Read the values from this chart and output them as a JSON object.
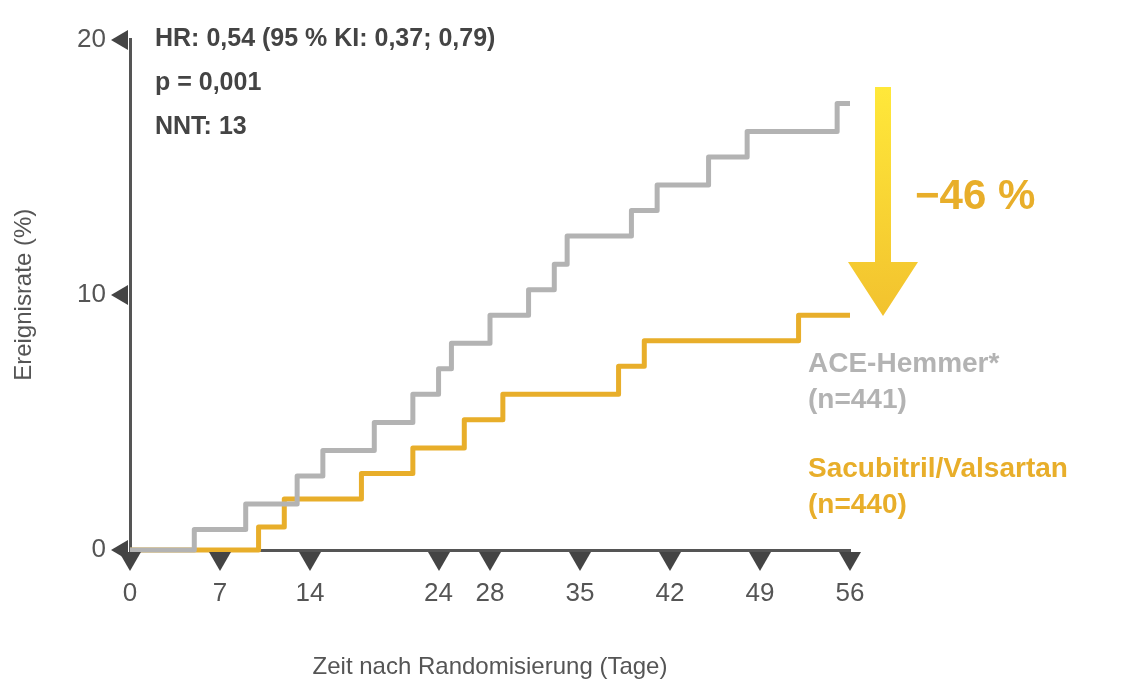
{
  "chart_data": {
    "type": "step",
    "xlabel": "Zeit nach Randomisierung (Tage)",
    "ylabel": "Ereignisrate (%)",
    "xlim": [
      0,
      56
    ],
    "xticks": [
      0,
      7,
      14,
      24,
      28,
      35,
      42,
      49,
      56
    ],
    "ylim": [
      0,
      20
    ],
    "yticks": [
      0,
      10,
      20
    ],
    "series": [
      {
        "name": "ACE-Hemmer*\n(n=441)",
        "color": "#b3b3b3",
        "x": [
          0,
          5,
          9,
          13,
          15,
          19,
          22,
          24,
          25,
          28,
          31,
          33,
          34,
          39,
          41,
          45,
          48,
          55,
          56
        ],
        "values": [
          0,
          0.8,
          1.8,
          2.9,
          3.9,
          5,
          6.1,
          7.1,
          8.1,
          9.2,
          10.2,
          11.2,
          12.3,
          13.3,
          14.3,
          15.4,
          16.4,
          17.5,
          17.5
        ]
      },
      {
        "name": "Sacubitril/Valsartan\n(n=440)",
        "color": "#e8ae2a",
        "x": [
          0,
          10,
          12,
          18,
          22,
          26,
          29,
          38,
          40,
          52,
          56
        ],
        "values": [
          0,
          0.9,
          2,
          3,
          4,
          5.1,
          6.1,
          7.2,
          8.2,
          9.2,
          9.2
        ]
      }
    ],
    "annotations": [
      "HR: 0,54 (95 % KI: 0,37; 0,79)",
      "p = 0,001",
      "NNT: 13",
      "−46 %"
    ],
    "marker": "none",
    "line_style": "solid",
    "grid": false
  }
}
